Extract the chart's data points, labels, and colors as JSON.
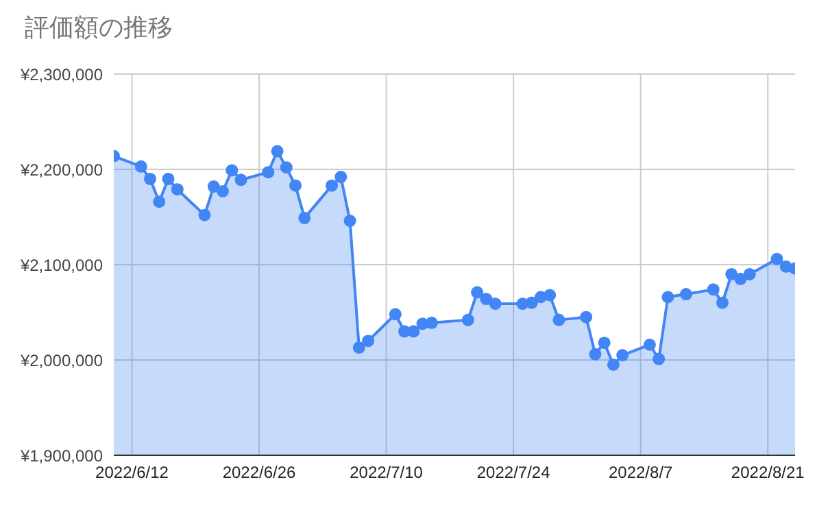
{
  "chart_data": {
    "type": "area",
    "title": "評価額の推移",
    "x": [
      "2022-06-10",
      "2022-06-13",
      "2022-06-14",
      "2022-06-15",
      "2022-06-16",
      "2022-06-17",
      "2022-06-20",
      "2022-06-21",
      "2022-06-22",
      "2022-06-23",
      "2022-06-24",
      "2022-06-27",
      "2022-06-28",
      "2022-06-29",
      "2022-06-30",
      "2022-07-01",
      "2022-07-04",
      "2022-07-05",
      "2022-07-06",
      "2022-07-07",
      "2022-07-08",
      "2022-07-11",
      "2022-07-12",
      "2022-07-13",
      "2022-07-14",
      "2022-07-15",
      "2022-07-19",
      "2022-07-20",
      "2022-07-21",
      "2022-07-22",
      "2022-07-25",
      "2022-07-26",
      "2022-07-27",
      "2022-07-28",
      "2022-07-29",
      "2022-08-01",
      "2022-08-02",
      "2022-08-03",
      "2022-08-04",
      "2022-08-05",
      "2022-08-08",
      "2022-08-09",
      "2022-08-10",
      "2022-08-12",
      "2022-08-15",
      "2022-08-16",
      "2022-08-17",
      "2022-08-18",
      "2022-08-19",
      "2022-08-22",
      "2022-08-23",
      "2022-08-24"
    ],
    "series": [
      {
        "color": "#4285f4",
        "values": [
          2214000,
          2203000,
          2190000,
          2166000,
          2190000,
          2179000,
          2152000,
          2182000,
          2177000,
          2199000,
          2189000,
          2197000,
          2219000,
          2202000,
          2183000,
          2149000,
          2183000,
          2192000,
          2146000,
          2013000,
          2020000,
          2048000,
          2030000,
          2030000,
          2038000,
          2039000,
          2042000,
          2071000,
          2064000,
          2059000,
          2059000,
          2060000,
          2066000,
          2068000,
          2042000,
          2045000,
          2006000,
          2018000,
          1995000,
          2005000,
          2016000,
          2001000,
          2066000,
          2069000,
          2074000,
          2060000,
          2090000,
          2085000,
          2090000,
          2106000,
          2098000,
          2096000
        ]
      }
    ],
    "xlim": [
      "2022-06-10",
      "2022-08-24"
    ],
    "xticks": [
      {
        "value": "2022-06-12",
        "label": "2022/6/12"
      },
      {
        "value": "2022-06-26",
        "label": "2022/6/26"
      },
      {
        "value": "2022-07-10",
        "label": "2022/7/10"
      },
      {
        "value": "2022-07-24",
        "label": "2022/7/24"
      },
      {
        "value": "2022-08-07",
        "label": "2022/8/7"
      },
      {
        "value": "2022-08-21",
        "label": "2022/8/21"
      }
    ],
    "ylim": [
      1900000,
      2300000
    ],
    "yticks": [
      {
        "value": 1900000,
        "label": "¥1,900,000"
      },
      {
        "value": 2000000,
        "label": "¥2,000,000"
      },
      {
        "value": 2100000,
        "label": "¥2,100,000"
      },
      {
        "value": 2200000,
        "label": "¥2,200,000"
      },
      {
        "value": 2300000,
        "label": "¥2,300,000"
      }
    ],
    "grid": true,
    "marker": "circle",
    "legend": false
  }
}
